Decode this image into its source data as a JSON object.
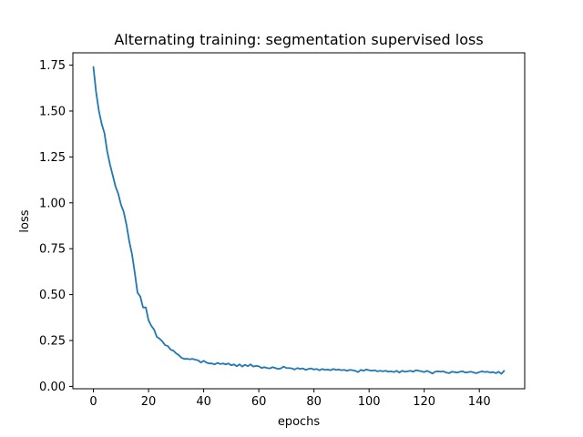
{
  "chart_data": {
    "type": "line",
    "title": "Alternating training: segmentation supervised loss",
    "xlabel": "epochs",
    "ylabel": "loss",
    "xlim": [
      -7.45,
      156.45
    ],
    "ylim": [
      -0.0128,
      1.8172
    ],
    "grid": false,
    "x_ticks": [
      0,
      20,
      40,
      60,
      80,
      100,
      120,
      140
    ],
    "x_tick_labels": [
      "0",
      "20",
      "40",
      "60",
      "80",
      "100",
      "120",
      "140"
    ],
    "y_ticks": [
      0.0,
      0.25,
      0.5,
      0.75,
      1.0,
      1.25,
      1.5,
      1.75
    ],
    "y_tick_labels": [
      "0.00",
      "0.25",
      "0.50",
      "0.75",
      "1.00",
      "1.25",
      "1.50",
      "1.75"
    ],
    "series": [
      {
        "color": "#1f77b4",
        "x": [
          0,
          1,
          2,
          3,
          4,
          5,
          6,
          7,
          8,
          9,
          10,
          11,
          12,
          13,
          14,
          15,
          16,
          17,
          18,
          19,
          20,
          21,
          22,
          23,
          24,
          25,
          26,
          27,
          28,
          29,
          30,
          31,
          32,
          33,
          34,
          35,
          36,
          37,
          38,
          39,
          40,
          41,
          42,
          43,
          44,
          45,
          46,
          47,
          48,
          49,
          50,
          51,
          52,
          53,
          54,
          55,
          56,
          57,
          58,
          59,
          60,
          61,
          62,
          63,
          64,
          65,
          66,
          67,
          68,
          69,
          70,
          71,
          72,
          73,
          74,
          75,
          76,
          77,
          78,
          79,
          80,
          81,
          82,
          83,
          84,
          85,
          86,
          87,
          88,
          89,
          90,
          91,
          92,
          93,
          94,
          95,
          96,
          97,
          98,
          99,
          100,
          101,
          102,
          103,
          104,
          105,
          106,
          107,
          108,
          109,
          110,
          111,
          112,
          113,
          114,
          115,
          116,
          117,
          118,
          119,
          120,
          121,
          122,
          123,
          124,
          125,
          126,
          127,
          128,
          129,
          130,
          131,
          132,
          133,
          134,
          135,
          136,
          137,
          138,
          139,
          140,
          141,
          142,
          143,
          144,
          145,
          146,
          147,
          148,
          149
        ],
        "y": [
          1.74,
          1.6,
          1.5,
          1.43,
          1.38,
          1.28,
          1.21,
          1.15,
          1.09,
          1.05,
          0.99,
          0.95,
          0.88,
          0.79,
          0.72,
          0.62,
          0.51,
          0.49,
          0.43,
          0.43,
          0.36,
          0.33,
          0.31,
          0.27,
          0.26,
          0.245,
          0.225,
          0.22,
          0.2,
          0.195,
          0.18,
          0.17,
          0.155,
          0.15,
          0.15,
          0.148,
          0.15,
          0.145,
          0.142,
          0.13,
          0.14,
          0.13,
          0.125,
          0.125,
          0.12,
          0.128,
          0.122,
          0.125,
          0.12,
          0.125,
          0.115,
          0.12,
          0.11,
          0.12,
          0.108,
          0.118,
          0.11,
          0.12,
          0.108,
          0.112,
          0.11,
          0.1,
          0.105,
          0.1,
          0.098,
          0.105,
          0.1,
          0.095,
          0.098,
          0.108,
          0.1,
          0.1,
          0.098,
          0.092,
          0.1,
          0.095,
          0.098,
          0.09,
          0.095,
          0.098,
          0.092,
          0.095,
          0.088,
          0.095,
          0.09,
          0.092,
          0.088,
          0.095,
          0.09,
          0.092,
          0.088,
          0.09,
          0.085,
          0.09,
          0.088,
          0.085,
          0.078,
          0.09,
          0.085,
          0.092,
          0.088,
          0.085,
          0.088,
          0.082,
          0.085,
          0.082,
          0.085,
          0.08,
          0.082,
          0.078,
          0.085,
          0.075,
          0.085,
          0.08,
          0.082,
          0.085,
          0.08,
          0.088,
          0.085,
          0.082,
          0.078,
          0.085,
          0.078,
          0.07,
          0.08,
          0.082,
          0.08,
          0.082,
          0.075,
          0.072,
          0.08,
          0.078,
          0.075,
          0.08,
          0.082,
          0.075,
          0.078,
          0.08,
          0.075,
          0.072,
          0.078,
          0.082,
          0.078,
          0.08,
          0.075,
          0.078,
          0.072,
          0.08,
          0.068,
          0.085
        ]
      }
    ]
  }
}
